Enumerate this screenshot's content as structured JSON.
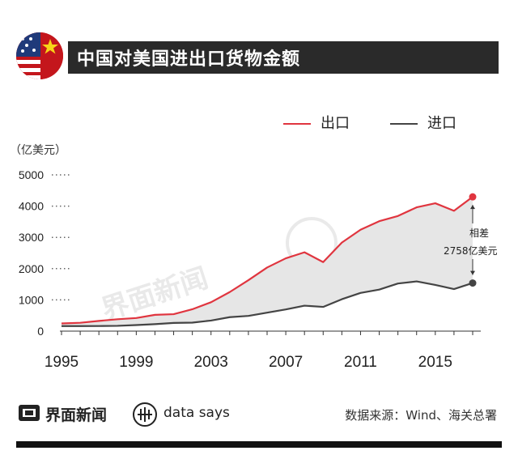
{
  "header": {
    "title": "中国对美国进出口货物金额"
  },
  "legend": {
    "export_label": "出口",
    "import_label": "进口"
  },
  "unit_label": "（亿美元）",
  "annotation": {
    "line1": "相差",
    "line2": "2758亿美元"
  },
  "footer": {
    "brand": "界面新闻",
    "datasays": "data says",
    "source": "数据来源：Wind、海关总署"
  },
  "colors": {
    "export": "#e0353f",
    "import": "#444444",
    "gap_fill": "#e6e6e6",
    "title_bg": "#2a2a2a"
  },
  "chart_data": {
    "type": "line",
    "x": [
      1995,
      1996,
      1997,
      1998,
      1999,
      2000,
      2001,
      2002,
      2003,
      2004,
      2005,
      2006,
      2007,
      2008,
      2009,
      2010,
      2011,
      2012,
      2013,
      2014,
      2015,
      2016,
      2017
    ],
    "series": [
      {
        "name": "出口",
        "values": [
          247,
          267,
          327,
          380,
          419,
          521,
          543,
          700,
          925,
          1250,
          1630,
          2035,
          2330,
          2523,
          2208,
          2833,
          3245,
          3518,
          3684,
          3961,
          4092,
          3851,
          4297
        ]
      },
      {
        "name": "进口",
        "values": [
          161,
          162,
          163,
          170,
          195,
          224,
          262,
          272,
          339,
          447,
          487,
          592,
          694,
          814,
          775,
          1021,
          1222,
          1329,
          1523,
          1591,
          1479,
          1345,
          1539
        ]
      }
    ],
    "xticks": [
      "1995",
      "1999",
      "2003",
      "2007",
      "2011",
      "2015"
    ],
    "yticks": [
      "0",
      "1000",
      "2000",
      "3000",
      "4000",
      "5000"
    ],
    "ylim": [
      0,
      5000
    ],
    "grid": false,
    "legend_position": "top-right"
  }
}
